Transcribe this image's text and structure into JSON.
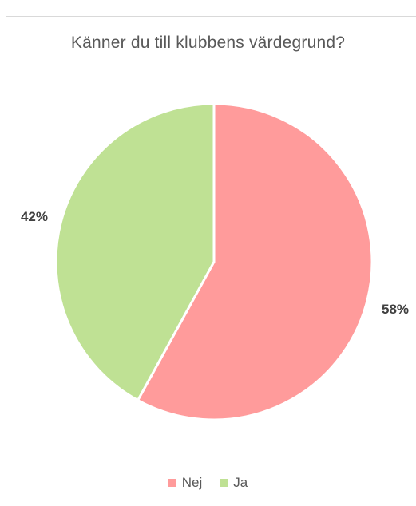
{
  "chart_data": {
    "type": "pie",
    "title": "Känner du till klubbens värdegrund?",
    "categories": [
      "Nej",
      "Ja"
    ],
    "values": [
      58,
      42
    ],
    "labels": [
      "58%",
      "42%"
    ],
    "colors": [
      "#ff9b9b",
      "#bfe194"
    ],
    "legend_position": "bottom",
    "start_angle_deg": 0,
    "direction": "clockwise"
  }
}
